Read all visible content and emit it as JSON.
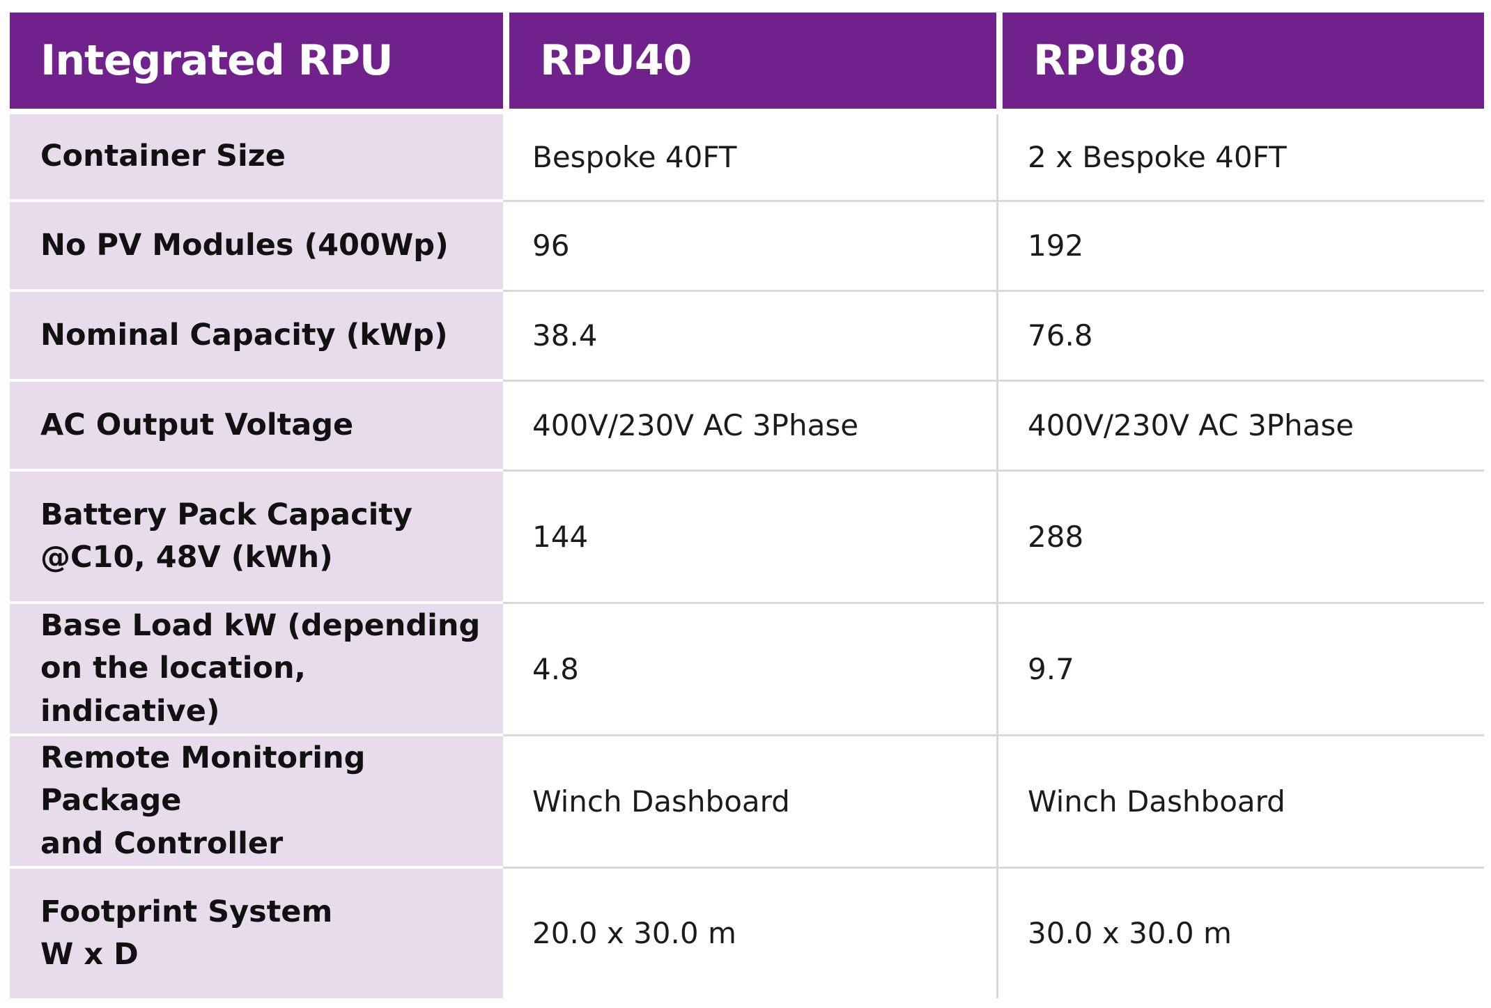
{
  "table": {
    "headers": [
      "Integrated RPU",
      "RPU40",
      "RPU80"
    ],
    "rows": [
      {
        "label_lines": [
          "Container Size"
        ],
        "rpu40": "Bespoke 40FT",
        "rpu80": "2 x Bespoke 40FT"
      },
      {
        "label_lines": [
          "No PV Modules (400Wp)"
        ],
        "rpu40": "96",
        "rpu80": "192"
      },
      {
        "label_lines": [
          "Nominal Capacity (kWp)"
        ],
        "rpu40": "38.4",
        "rpu80": "76.8"
      },
      {
        "label_lines": [
          "AC Output Voltage"
        ],
        "rpu40": "400V/230V AC 3Phase",
        "rpu80": "400V/230V AC 3Phase"
      },
      {
        "label_lines": [
          "Battery Pack Capacity",
          "@C10, 48V (kWh)"
        ],
        "rpu40": "144",
        "rpu80": "288"
      },
      {
        "label_lines": [
          "Base Load kW (depending",
          "on the location, indicative)"
        ],
        "rpu40": "4.8",
        "rpu80": "9.7"
      },
      {
        "label_lines": [
          "Remote Monitoring Package",
          "and Controller"
        ],
        "rpu40": "Winch Dashboard",
        "rpu80": "Winch Dashboard"
      },
      {
        "label_lines": [
          "Footprint System",
          "W x D"
        ],
        "rpu40": "20.0 x 30.0 m",
        "rpu80": "30.0 x 30.0 m"
      }
    ]
  },
  "colors": {
    "header_bg": "#70218b",
    "label_bg": "#e8dcec",
    "header_text": "#ffffff"
  }
}
